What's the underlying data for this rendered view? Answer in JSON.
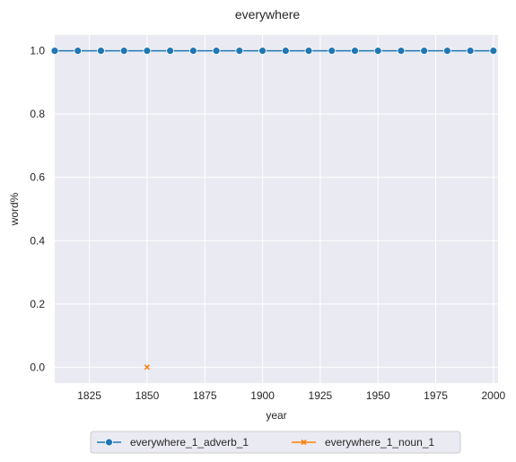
{
  "chart_data": {
    "type": "line",
    "title": "everywhere",
    "xlabel": "year",
    "ylabel": "word%",
    "xlim": [
      1810,
      2002
    ],
    "ylim": [
      -0.05,
      1.05
    ],
    "xticks": [
      1825,
      1850,
      1875,
      1900,
      1925,
      1950,
      1975,
      2000
    ],
    "yticks": [
      0.0,
      0.2,
      0.4,
      0.6,
      0.8,
      1.0
    ],
    "grid": true,
    "legend_position": "bottom-center",
    "series": [
      {
        "name": "everywhere_1_adverb_1",
        "color": "#1f77b4",
        "marker": "circle",
        "x": [
          1810,
          1820,
          1830,
          1840,
          1850,
          1860,
          1870,
          1880,
          1890,
          1900,
          1910,
          1920,
          1930,
          1940,
          1950,
          1960,
          1970,
          1980,
          1990,
          2000
        ],
        "y": [
          1.0,
          1.0,
          1.0,
          1.0,
          1.0,
          1.0,
          1.0,
          1.0,
          1.0,
          1.0,
          1.0,
          1.0,
          1.0,
          1.0,
          1.0,
          1.0,
          1.0,
          1.0,
          1.0,
          1.0
        ]
      },
      {
        "name": "everywhere_1_noun_1",
        "color": "#ff7f0e",
        "marker": "x",
        "x": [
          1850
        ],
        "y": [
          0.0
        ]
      }
    ]
  }
}
